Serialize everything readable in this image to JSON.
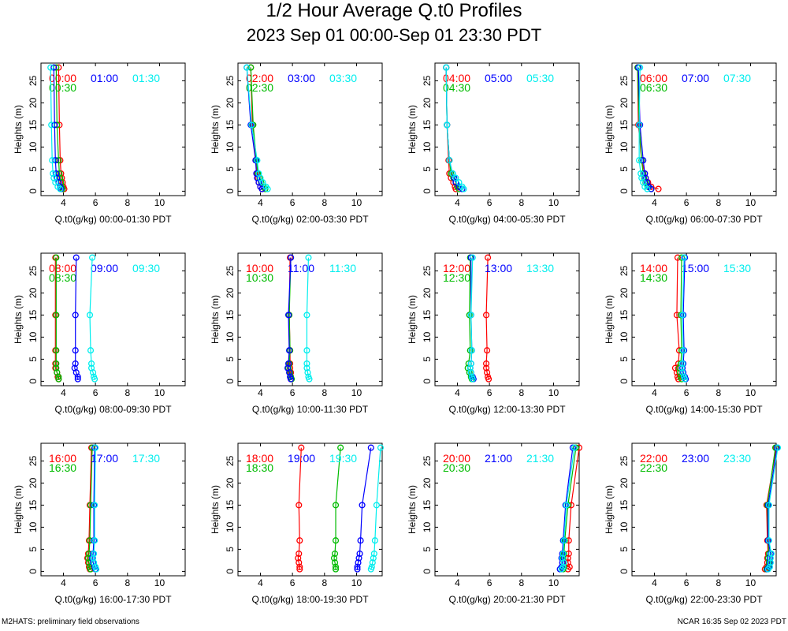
{
  "title": "1/2 Hour Average Q.t0 Profiles",
  "subtitle": "2023 Sep 01 00:00-Sep 01 23:30 PDT",
  "footer_left": "M2HATS: preliminary field observations",
  "footer_right": "NCAR 16:35 Sep 02 2023 PDT",
  "colors": {
    "red": "#ff0000",
    "green": "#00bb00",
    "blue": "#0000ff",
    "cyan": "#00eeee"
  },
  "chart_data": {
    "type": "line",
    "heights": [
      0.5,
      1,
      2,
      3,
      4,
      7,
      15,
      28
    ],
    "xlim": [
      2.6,
      11.6
    ],
    "ylim": [
      -1,
      29
    ],
    "xticks": [
      4,
      6,
      8,
      10
    ],
    "yticks": [
      0,
      5,
      10,
      15,
      20,
      25
    ],
    "ylabel": "Heights (m)",
    "panels": [
      {
        "xlabel": "Q.t0(g/kg) 00:00-01:30 PDT",
        "series": [
          {
            "name": "00:00",
            "color": "red",
            "values": [
              4.05,
              4.0,
              3.95,
              3.9,
              3.85,
              3.8,
              3.75,
              3.7
            ]
          },
          {
            "name": "00:30",
            "color": "green",
            "values": [
              3.95,
              3.9,
              3.85,
              3.8,
              3.75,
              3.7,
              3.6,
              3.55
            ]
          },
          {
            "name": "01:00",
            "color": "blue",
            "values": [
              3.85,
              3.8,
              3.7,
              3.6,
              3.55,
              3.5,
              3.45,
              3.4
            ]
          },
          {
            "name": "01:30",
            "color": "cyan",
            "values": [
              3.8,
              3.65,
              3.5,
              3.4,
              3.35,
              3.3,
              3.25,
              3.2
            ]
          }
        ]
      },
      {
        "xlabel": "Q.t0(g/kg) 02:00-03:30 PDT",
        "series": [
          {
            "name": "02:00",
            "color": "red",
            "values": [
              4.1,
              4.0,
              3.9,
              3.85,
              3.8,
              3.7,
              3.5,
              3.4
            ]
          },
          {
            "name": "02:30",
            "color": "green",
            "values": [
              4.3,
              4.2,
              4.05,
              3.95,
              3.85,
              3.75,
              3.55,
              3.4
            ]
          },
          {
            "name": "03:00",
            "color": "blue",
            "values": [
              4.1,
              4.0,
              3.9,
              3.8,
              3.75,
              3.7,
              3.4,
              3.15
            ]
          },
          {
            "name": "03:30",
            "color": "cyan",
            "values": [
              4.45,
              4.35,
              4.15,
              4.0,
              3.9,
              3.8,
              3.45,
              3.15
            ]
          }
        ]
      },
      {
        "xlabel": "Q.t0(g/kg) 04:00-05:30 PDT",
        "series": [
          {
            "name": "04:00",
            "color": "red",
            "values": [
              3.9,
              3.85,
              3.75,
              3.6,
              3.5,
              3.45,
              3.35,
              3.3
            ]
          },
          {
            "name": "04:30",
            "color": "green",
            "values": [
              4.1,
              4.0,
              3.9,
              3.75,
              3.6,
              3.5,
              3.35,
              3.3
            ]
          },
          {
            "name": "05:00",
            "color": "blue",
            "values": [
              4.3,
              4.1,
              3.9,
              3.8,
              3.7,
              3.5,
              3.35,
              3.3
            ]
          },
          {
            "name": "05:30",
            "color": "cyan",
            "values": [
              4.4,
              4.3,
              4.1,
              3.9,
              3.7,
              3.5,
              3.35,
              3.3
            ]
          }
        ]
      },
      {
        "xlabel": "Q.t0(g/kg) 06:00-07:30 PDT",
        "series": [
          {
            "name": "06:00",
            "color": "red",
            "values": [
              4.25,
              3.8,
              3.6,
              3.45,
              3.4,
              3.2,
              3.0,
              2.95
            ]
          },
          {
            "name": "06:30",
            "color": "green",
            "values": [
              3.8,
              3.6,
              3.45,
              3.35,
              3.3,
              3.2,
              3.05,
              2.95
            ]
          },
          {
            "name": "07:00",
            "color": "blue",
            "values": [
              3.8,
              3.65,
              3.55,
              3.45,
              3.4,
              3.3,
              3.1,
              3.0
            ]
          },
          {
            "name": "07:30",
            "color": "cyan",
            "values": [
              3.55,
              3.4,
              3.3,
              3.2,
              3.15,
              3.05,
              3.05,
              3.1
            ]
          }
        ]
      },
      {
        "xlabel": "Q.t0(g/kg) 08:00-09:30 PDT",
        "series": [
          {
            "name": "08:00",
            "color": "red",
            "values": [
              3.7,
              3.65,
              3.6,
              3.5,
              3.5,
              3.5,
              3.5,
              3.5
            ]
          },
          {
            "name": "08:30",
            "color": "green",
            "values": [
              3.7,
              3.7,
              3.6,
              3.55,
              3.55,
              3.55,
              3.55,
              3.55
            ]
          },
          {
            "name": "09:00",
            "color": "blue",
            "values": [
              4.9,
              4.9,
              4.8,
              4.7,
              4.75,
              4.75,
              4.75,
              4.8
            ]
          },
          {
            "name": "09:30",
            "color": "cyan",
            "values": [
              5.95,
              5.9,
              5.85,
              5.75,
              5.75,
              5.7,
              5.65,
              5.8
            ]
          }
        ]
      },
      {
        "xlabel": "Q.t0(g/kg) 10:00-11:30 PDT",
        "series": [
          {
            "name": "10:00",
            "color": "red",
            "values": [
              5.9,
              5.9,
              5.9,
              5.85,
              5.85,
              5.85,
              5.8,
              5.85
            ]
          },
          {
            "name": "10:30",
            "color": "green",
            "values": [
              5.95,
              5.9,
              5.85,
              5.75,
              5.8,
              5.85,
              5.8,
              5.9
            ]
          },
          {
            "name": "11:00",
            "color": "blue",
            "values": [
              5.9,
              5.85,
              5.8,
              5.7,
              5.75,
              5.8,
              5.75,
              5.9
            ]
          },
          {
            "name": "11:30",
            "color": "cyan",
            "values": [
              7.05,
              7.0,
              6.95,
              6.9,
              6.9,
              6.9,
              6.9,
              7.0
            ]
          }
        ]
      },
      {
        "xlabel": "Q.t0(g/kg) 12:00-13:30 PDT",
        "series": [
          {
            "name": "12:00",
            "color": "red",
            "values": [
              5.95,
              5.9,
              5.85,
              5.8,
              5.8,
              5.85,
              5.8,
              5.9
            ]
          },
          {
            "name": "12:30",
            "color": "green",
            "values": [
              4.9,
              4.85,
              4.75,
              4.65,
              4.7,
              4.8,
              4.75,
              4.8
            ]
          },
          {
            "name": "13:00",
            "color": "blue",
            "values": [
              5.0,
              4.95,
              4.85,
              4.8,
              4.85,
              4.9,
              4.85,
              4.85
            ]
          },
          {
            "name": "13:30",
            "color": "cyan",
            "values": [
              4.95,
              4.9,
              4.85,
              4.8,
              4.85,
              4.9,
              4.85,
              4.95
            ]
          }
        ]
      },
      {
        "xlabel": "Q.t0(g/kg) 14:00-15:30 PDT",
        "series": [
          {
            "name": "14:00",
            "color": "red",
            "values": [
              5.5,
              5.45,
              5.4,
              5.3,
              5.5,
              5.55,
              5.4,
              5.45
            ]
          },
          {
            "name": "14:30",
            "color": "green",
            "values": [
              5.7,
              5.65,
              5.6,
              5.55,
              5.65,
              5.7,
              5.65,
              5.7
            ]
          },
          {
            "name": "15:00",
            "color": "blue",
            "values": [
              5.95,
              5.9,
              5.8,
              5.75,
              5.8,
              5.85,
              5.8,
              5.9
            ]
          },
          {
            "name": "15:30",
            "color": "cyan",
            "values": [
              5.9,
              5.85,
              5.75,
              5.7,
              5.75,
              5.8,
              5.75,
              5.85
            ]
          }
        ]
      },
      {
        "xlabel": "Q.t0(g/kg) 16:00-17:30 PDT",
        "series": [
          {
            "name": "16:00",
            "color": "red",
            "values": [
              5.65,
              5.6,
              5.55,
              5.5,
              5.55,
              5.6,
              5.65,
              5.75
            ]
          },
          {
            "name": "16:30",
            "color": "green",
            "values": [
              5.7,
              5.65,
              5.6,
              5.55,
              5.6,
              5.65,
              5.7,
              5.8
            ]
          },
          {
            "name": "17:00",
            "color": "blue",
            "values": [
              6.0,
              5.95,
              5.85,
              5.8,
              5.85,
              5.9,
              5.9,
              5.95
            ]
          },
          {
            "name": "17:30",
            "color": "cyan",
            "values": [
              6.05,
              6.0,
              5.9,
              5.85,
              5.9,
              5.95,
              5.95,
              6.0
            ]
          }
        ]
      },
      {
        "xlabel": "Q.t0(g/kg) 18:00-19:30 PDT",
        "series": [
          {
            "name": "18:00",
            "color": "red",
            "values": [
              6.45,
              6.45,
              6.4,
              6.35,
              6.4,
              6.45,
              6.4,
              6.55
            ]
          },
          {
            "name": "18:30",
            "color": "green",
            "values": [
              8.7,
              8.7,
              8.65,
              8.6,
              8.65,
              8.7,
              8.7,
              9.0
            ]
          },
          {
            "name": "19:00",
            "color": "blue",
            "values": [
              10.05,
              10.05,
              10.1,
              10.15,
              10.2,
              10.25,
              10.35,
              10.9
            ]
          },
          {
            "name": "19:30",
            "color": "cyan",
            "values": [
              10.9,
              10.95,
              11.0,
              11.05,
              11.1,
              11.15,
              11.25,
              11.5
            ]
          }
        ]
      },
      {
        "xlabel": "Q.t0(g/kg) 20:00-21:30 PDT",
        "series": [
          {
            "name": "20:00",
            "color": "red",
            "values": [
              10.9,
              11.0,
              10.9,
              10.9,
              10.95,
              10.95,
              11.1,
              11.6
            ]
          },
          {
            "name": "20:30",
            "color": "green",
            "values": [
              10.6,
              10.65,
              10.65,
              10.6,
              10.65,
              10.7,
              10.9,
              11.4
            ]
          },
          {
            "name": "21:00",
            "color": "blue",
            "values": [
              10.4,
              10.5,
              10.55,
              10.5,
              10.55,
              10.6,
              10.75,
              11.2
            ]
          },
          {
            "name": "21:30",
            "color": "cyan",
            "values": [
              10.5,
              10.6,
              10.65,
              10.55,
              10.6,
              10.65,
              10.8,
              11.3
            ]
          }
        ]
      },
      {
        "xlabel": "Q.t0(g/kg) 22:00-23:30 PDT",
        "series": [
          {
            "name": "22:00",
            "color": "red",
            "values": [
              10.9,
              11.0,
              11.05,
              11.05,
              11.1,
              11.05,
              11.0,
              11.6
            ]
          },
          {
            "name": "22:30",
            "color": "green",
            "values": [
              11.0,
              11.1,
              11.15,
              11.1,
              11.15,
              11.1,
              11.05,
              11.55
            ]
          },
          {
            "name": "23:00",
            "color": "blue",
            "values": [
              11.05,
              11.15,
              11.2,
              11.2,
              11.25,
              11.1,
              11.1,
              11.65
            ]
          },
          {
            "name": "23:30",
            "color": "cyan",
            "values": [
              11.1,
              11.2,
              11.25,
              11.25,
              11.3,
              11.15,
              11.15,
              11.7
            ]
          }
        ]
      }
    ]
  }
}
